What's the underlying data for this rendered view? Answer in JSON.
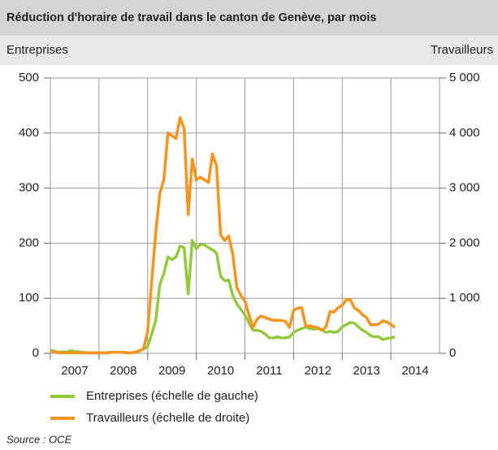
{
  "chart_data": {
    "type": "line",
    "title": "Réduction d'horaire de travail dans le canton de Genève, par mois",
    "ylabel": "Entreprises",
    "y2label": "Travailleurs",
    "source": "Source : OCE",
    "x": [
      2007,
      2007.083,
      2007.167,
      2007.25,
      2007.333,
      2007.417,
      2007.5,
      2007.583,
      2007.667,
      2007.75,
      2007.833,
      2007.917,
      2008,
      2008.083,
      2008.167,
      2008.25,
      2008.333,
      2008.417,
      2008.5,
      2008.583,
      2008.667,
      2008.75,
      2008.833,
      2008.917,
      2009,
      2009.083,
      2009.167,
      2009.25,
      2009.333,
      2009.417,
      2009.5,
      2009.583,
      2009.667,
      2009.75,
      2009.833,
      2009.917,
      2010,
      2010.083,
      2010.167,
      2010.25,
      2010.333,
      2010.417,
      2010.5,
      2010.583,
      2010.667,
      2010.75,
      2010.833,
      2010.917,
      2011,
      2011.083,
      2011.167,
      2011.25,
      2011.333,
      2011.417,
      2011.5,
      2011.583,
      2011.667,
      2011.75,
      2011.833,
      2011.917,
      2012,
      2012.083,
      2012.167,
      2012.25,
      2012.333,
      2012.417,
      2012.5,
      2012.583,
      2012.667,
      2012.75,
      2012.833,
      2012.917,
      2013,
      2013.083,
      2013.167,
      2013.25,
      2013.333,
      2013.417,
      2013.5,
      2013.583,
      2013.667,
      2013.75,
      2013.833,
      2013.917,
      2014,
      2014.083
    ],
    "series": [
      {
        "name": "Entreprises (échelle de gauche)",
        "color": "#95c93d",
        "axis": "y",
        "values": [
          5,
          4,
          2,
          3,
          2,
          5,
          3,
          3,
          2,
          1,
          1,
          1,
          1,
          1,
          1,
          2,
          2,
          2,
          2,
          1,
          1,
          2,
          4,
          8,
          12,
          35,
          60,
          125,
          145,
          175,
          170,
          175,
          195,
          192,
          108,
          205,
          190,
          198,
          197,
          192,
          188,
          182,
          140,
          132,
          133,
          105,
          90,
          80,
          70,
          55,
          42,
          42,
          40,
          35,
          28,
          28,
          30,
          28,
          28,
          30,
          38,
          42,
          45,
          48,
          45,
          44,
          45,
          42,
          38,
          40,
          38,
          40,
          48,
          52,
          56,
          55,
          48,
          42,
          38,
          32,
          30,
          30,
          25,
          27,
          28,
          30
        ]
      },
      {
        "name": "Travailleurs (échelle de droite)",
        "color": "#f7941d",
        "axis": "y2",
        "values": [
          50,
          20,
          10,
          10,
          10,
          10,
          10,
          10,
          10,
          10,
          10,
          10,
          10,
          10,
          10,
          20,
          20,
          20,
          20,
          10,
          10,
          20,
          50,
          80,
          400,
          1300,
          2200,
          2900,
          3150,
          4000,
          3950,
          3900,
          4280,
          4080,
          2520,
          3530,
          3150,
          3200,
          3150,
          3100,
          3620,
          3400,
          2150,
          2050,
          2130,
          1800,
          1200,
          1050,
          950,
          700,
          470,
          620,
          680,
          650,
          620,
          600,
          600,
          600,
          580,
          470,
          780,
          820,
          830,
          500,
          500,
          480,
          460,
          420,
          480,
          760,
          750,
          830,
          870,
          970,
          980,
          820,
          780,
          700,
          650,
          520,
          520,
          530,
          590,
          570,
          520,
          470
        ]
      }
    ],
    "xlim": [
      2007,
      2015
    ],
    "xticks": [
      2007,
      2008,
      2009,
      2010,
      2011,
      2012,
      2013,
      2014
    ],
    "ylim": [
      0,
      500
    ],
    "yticks": [
      0,
      100,
      200,
      300,
      400,
      500
    ],
    "y2lim": [
      0,
      5000
    ],
    "y2ticks": [
      0,
      {
        "value": 1000,
        "label": "1 000"
      },
      {
        "value": 2000,
        "label": "2 000"
      },
      {
        "value": 3000,
        "label": "3 000"
      },
      {
        "value": 4000,
        "label": "4 000"
      },
      {
        "value": 5000,
        "label": "5 000"
      }
    ],
    "grid": true
  }
}
